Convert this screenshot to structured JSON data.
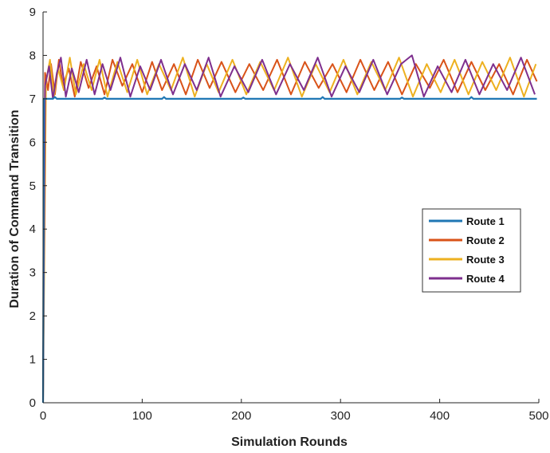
{
  "chart_data": {
    "type": "line",
    "title": "",
    "xlabel": "Simulation Rounds",
    "ylabel": "Duration of Command Transition",
    "xlim": [
      0,
      500
    ],
    "ylim": [
      0,
      9
    ],
    "xticks": [
      "0",
      "100",
      "200",
      "300",
      "400",
      "500"
    ],
    "yticks": [
      "0",
      "1",
      "2",
      "3",
      "4",
      "5",
      "6",
      "7",
      "8",
      "9"
    ],
    "grid": false,
    "legend_position": "center-right",
    "series": [
      {
        "name": "Route 1",
        "color": "#1f77b4",
        "start_value": 0,
        "steady_value": 7.0,
        "points": [
          [
            0,
            0
          ],
          [
            1,
            7.0
          ],
          [
            10,
            7.0
          ],
          [
            12,
            7.04
          ],
          [
            14,
            7.0
          ],
          [
            60,
            7.0
          ],
          [
            62,
            7.03
          ],
          [
            64,
            7.0
          ],
          [
            120,
            7.0
          ],
          [
            122,
            7.04
          ],
          [
            124,
            7.0
          ],
          [
            200,
            7.0
          ],
          [
            202,
            7.03
          ],
          [
            204,
            7.0
          ],
          [
            280,
            7.0
          ],
          [
            282,
            7.04
          ],
          [
            284,
            7.0
          ],
          [
            360,
            7.0
          ],
          [
            362,
            7.03
          ],
          [
            364,
            7.0
          ],
          [
            430,
            7.0
          ],
          [
            432,
            7.04
          ],
          [
            434,
            7.0
          ],
          [
            498,
            7.0
          ]
        ]
      },
      {
        "name": "Route 2",
        "color": "#d95319",
        "start_value": 0,
        "range": [
          7.0,
          7.95
        ],
        "points": [
          [
            0,
            0
          ],
          [
            2,
            7.6
          ],
          [
            5,
            7.2
          ],
          [
            8,
            7.8
          ],
          [
            12,
            7.1
          ],
          [
            16,
            7.9
          ],
          [
            20,
            7.3
          ],
          [
            26,
            7.7
          ],
          [
            32,
            7.05
          ],
          [
            38,
            7.85
          ],
          [
            46,
            7.25
          ],
          [
            54,
            7.75
          ],
          [
            62,
            7.1
          ],
          [
            70,
            7.9
          ],
          [
            80,
            7.3
          ],
          [
            90,
            7.8
          ],
          [
            100,
            7.15
          ],
          [
            110,
            7.85
          ],
          [
            120,
            7.2
          ],
          [
            132,
            7.8
          ],
          [
            144,
            7.1
          ],
          [
            156,
            7.9
          ],
          [
            168,
            7.25
          ],
          [
            180,
            7.85
          ],
          [
            194,
            7.15
          ],
          [
            208,
            7.8
          ],
          [
            222,
            7.2
          ],
          [
            236,
            7.9
          ],
          [
            250,
            7.1
          ],
          [
            264,
            7.85
          ],
          [
            278,
            7.25
          ],
          [
            292,
            7.8
          ],
          [
            306,
            7.15
          ],
          [
            320,
            7.9
          ],
          [
            334,
            7.2
          ],
          [
            348,
            7.85
          ],
          [
            362,
            7.1
          ],
          [
            376,
            7.8
          ],
          [
            390,
            7.25
          ],
          [
            404,
            7.9
          ],
          [
            418,
            7.15
          ],
          [
            432,
            7.85
          ],
          [
            446,
            7.2
          ],
          [
            460,
            7.8
          ],
          [
            474,
            7.1
          ],
          [
            488,
            7.9
          ],
          [
            498,
            7.4
          ]
        ]
      },
      {
        "name": "Route 3",
        "color": "#edb120",
        "start_value": 0,
        "range": [
          7.0,
          7.95
        ],
        "points": [
          [
            0,
            0
          ],
          [
            3,
            7.4
          ],
          [
            7,
            7.9
          ],
          [
            11,
            7.05
          ],
          [
            15,
            7.7
          ],
          [
            21,
            7.2
          ],
          [
            27,
            7.95
          ],
          [
            33,
            7.1
          ],
          [
            41,
            7.8
          ],
          [
            49,
            7.2
          ],
          [
            57,
            7.9
          ],
          [
            65,
            7.05
          ],
          [
            75,
            7.85
          ],
          [
            85,
            7.15
          ],
          [
            95,
            7.9
          ],
          [
            105,
            7.1
          ],
          [
            117,
            7.8
          ],
          [
            129,
            7.2
          ],
          [
            141,
            7.95
          ],
          [
            153,
            7.05
          ],
          [
            165,
            7.8
          ],
          [
            177,
            7.15
          ],
          [
            191,
            7.9
          ],
          [
            205,
            7.1
          ],
          [
            219,
            7.85
          ],
          [
            233,
            7.2
          ],
          [
            247,
            7.95
          ],
          [
            261,
            7.05
          ],
          [
            275,
            7.8
          ],
          [
            289,
            7.15
          ],
          [
            303,
            7.9
          ],
          [
            317,
            7.1
          ],
          [
            331,
            7.85
          ],
          [
            345,
            7.2
          ],
          [
            359,
            7.95
          ],
          [
            373,
            7.05
          ],
          [
            387,
            7.8
          ],
          [
            401,
            7.15
          ],
          [
            415,
            7.9
          ],
          [
            429,
            7.1
          ],
          [
            443,
            7.85
          ],
          [
            457,
            7.2
          ],
          [
            471,
            7.95
          ],
          [
            485,
            7.05
          ],
          [
            497,
            7.8
          ]
        ]
      },
      {
        "name": "Route 4",
        "color": "#7e2f8e",
        "start_value": 0,
        "range": [
          7.0,
          8.0
        ],
        "points": [
          [
            0,
            0
          ],
          [
            2,
            7.3
          ],
          [
            6,
            7.75
          ],
          [
            10,
            7.0
          ],
          [
            14,
            7.6
          ],
          [
            18,
            7.95
          ],
          [
            23,
            7.05
          ],
          [
            29,
            7.7
          ],
          [
            36,
            7.15
          ],
          [
            44,
            7.9
          ],
          [
            52,
            7.1
          ],
          [
            60,
            7.8
          ],
          [
            68,
            7.2
          ],
          [
            78,
            7.95
          ],
          [
            88,
            7.05
          ],
          [
            98,
            7.75
          ],
          [
            108,
            7.2
          ],
          [
            119,
            7.9
          ],
          [
            131,
            7.1
          ],
          [
            143,
            7.8
          ],
          [
            155,
            7.2
          ],
          [
            167,
            7.95
          ],
          [
            179,
            7.05
          ],
          [
            193,
            7.75
          ],
          [
            207,
            7.15
          ],
          [
            221,
            7.9
          ],
          [
            235,
            7.1
          ],
          [
            249,
            7.8
          ],
          [
            263,
            7.2
          ],
          [
            277,
            7.95
          ],
          [
            291,
            7.05
          ],
          [
            305,
            7.75
          ],
          [
            319,
            7.15
          ],
          [
            333,
            7.9
          ],
          [
            347,
            7.1
          ],
          [
            361,
            7.8
          ],
          [
            372,
            8.0
          ],
          [
            384,
            7.05
          ],
          [
            398,
            7.75
          ],
          [
            412,
            7.15
          ],
          [
            426,
            7.9
          ],
          [
            440,
            7.1
          ],
          [
            454,
            7.8
          ],
          [
            468,
            7.2
          ],
          [
            482,
            7.95
          ],
          [
            496,
            7.1
          ]
        ]
      }
    ]
  }
}
